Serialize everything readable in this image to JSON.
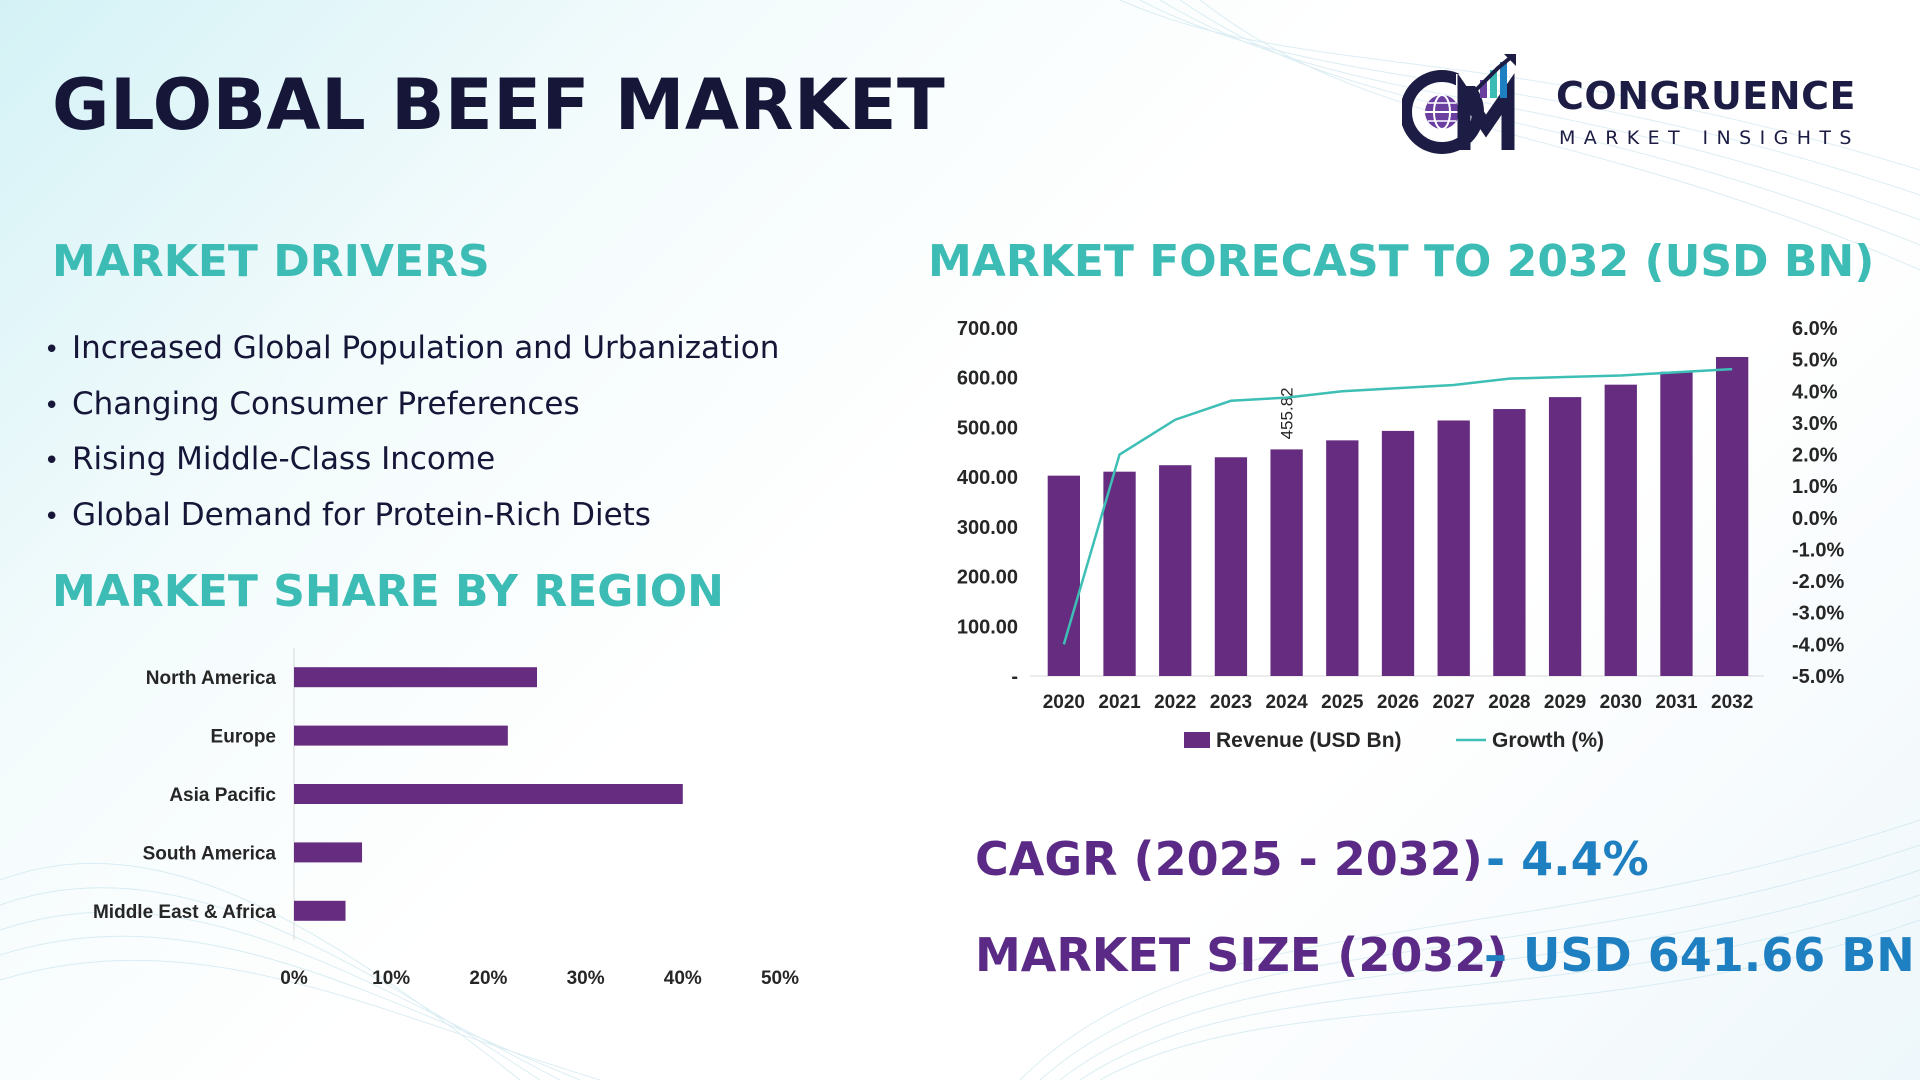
{
  "title": "GLOBAL BEEF MARKET",
  "logo": {
    "name": "CONGRUENCE",
    "subtitle": "MARKET INSIGHTS",
    "icon": "cm-globe-growth-logo-icon"
  },
  "drivers": {
    "title": "MARKET DRIVERS",
    "items": [
      "Increased Global Population and Urbanization",
      "Changing Consumer Preferences",
      "Rising Middle-Class Income",
      "Global Demand for Protein-Rich Diets"
    ]
  },
  "region": {
    "title": "MARKET SHARE BY REGION"
  },
  "forecast": {
    "title": "MARKET FORECAST TO 2032 (USD BN)"
  },
  "stats": {
    "cagr_label": "CAGR (2025 - 2032)",
    "cagr_value": "- 4.4%",
    "size_label": "MARKET SIZE (2032)",
    "size_value": "– USD 641.66 BN"
  },
  "colors": {
    "bar": "#652c80",
    "growth_line": "#3dbfb6",
    "heading": "#3cbcb4",
    "stat_label": "#5b2a86",
    "stat_value": "#1e7fc1"
  },
  "chart_data": [
    {
      "type": "bar",
      "orientation": "horizontal",
      "categories": [
        "North America",
        "Europe",
        "Asia Pacific",
        "South America",
        "Middle East & Africa"
      ],
      "values": [
        25,
        22,
        40,
        7,
        5.3
      ],
      "xlim": [
        0,
        50
      ],
      "xticks": [
        "0%",
        "10%",
        "20%",
        "30%",
        "40%",
        "50%"
      ],
      "grid": false,
      "legend": "none"
    },
    {
      "type": "bar",
      "categories": [
        "2020",
        "2021",
        "2022",
        "2023",
        "2024",
        "2025",
        "2026",
        "2027",
        "2028",
        "2029",
        "2030",
        "2031",
        "2032"
      ],
      "series": [
        {
          "name": "Revenue (USD Bn)",
          "type": "bar",
          "axis": "left",
          "values": [
            403,
            411,
            424,
            440,
            455.82,
            474,
            493,
            514,
            537,
            561,
            586,
            612,
            641.66
          ]
        },
        {
          "name": "Growth (%)",
          "type": "line",
          "axis": "right",
          "values": [
            -4.0,
            2.0,
            3.1,
            3.7,
            3.8,
            4.0,
            4.1,
            4.2,
            4.4,
            4.45,
            4.5,
            4.6,
            4.7
          ]
        }
      ],
      "data_labels": [
        {
          "category": "2024",
          "text": "455.82"
        }
      ],
      "ylim": [
        0,
        700
      ],
      "yticks_left": [
        "-",
        "100.00",
        "200.00",
        "300.00",
        "400.00",
        "500.00",
        "600.00",
        "700.00"
      ],
      "ylim_right": [
        -5,
        6
      ],
      "yticks_right": [
        "-5.0%",
        "-4.0%",
        "-3.0%",
        "-2.0%",
        "-1.0%",
        "0.0%",
        "1.0%",
        "2.0%",
        "3.0%",
        "4.0%",
        "5.0%",
        "6.0%"
      ],
      "grid": false,
      "legend": "bottom"
    }
  ]
}
